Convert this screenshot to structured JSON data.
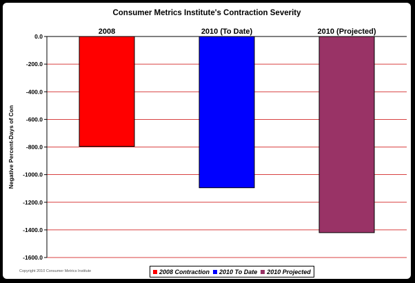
{
  "chart_data": {
    "type": "bar",
    "title": "Consumer Metrics Institute's Contraction Severity",
    "ylabel": "Negative Percent-Days of Con",
    "xlabel": "",
    "ylim": [
      -1600,
      0
    ],
    "yticks": [
      0,
      -200,
      -400,
      -600,
      -800,
      -1000,
      -1200,
      -1400,
      -1600
    ],
    "ytick_labels": [
      "0.0",
      "-200.0",
      "-400.0",
      "-600.0",
      "-800.0",
      "-1000.0",
      "-1200.0",
      "-1400.0",
      "-1600.0"
    ],
    "categories": [
      "2008",
      "2010 (To Date)",
      "2010 (Projected)"
    ],
    "values": [
      -795,
      -1095,
      -1420
    ],
    "colors": [
      "#ff0000",
      "#0000ff",
      "#993366"
    ],
    "gridline_color": "#cc0000",
    "grid": true,
    "legend_position": "bottom",
    "legend": [
      "2008 Contraction",
      "2010 To Date",
      "2010 Projected"
    ]
  },
  "copyright": "Copyright 2010 Consumer Metrics Institute"
}
